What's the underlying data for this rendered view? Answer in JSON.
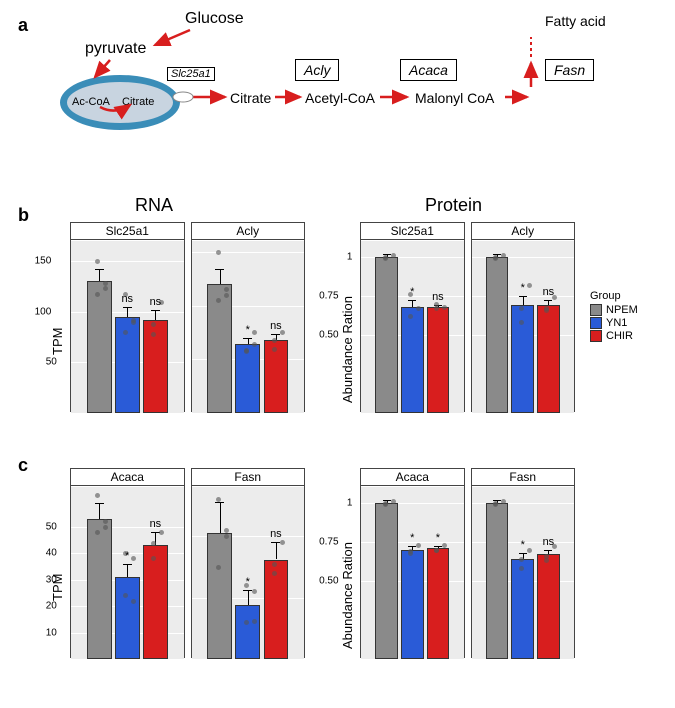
{
  "labels": {
    "a": "a",
    "b": "b",
    "c": "c"
  },
  "diagram": {
    "glucose": "Glucose",
    "pyruvate": "pyruvate",
    "ac_coa": "Ac-CoA",
    "citrate_in": "Citrate",
    "slc25a1": "Slc25a1",
    "citrate_out": "Citrate",
    "acly": "Acly",
    "acetyl_coa": "Acetyl-CoA",
    "acaca": "Acaca",
    "malonyl_coa": "Malonyl CoA",
    "fasn": "Fasn",
    "fatty_acid": "Fatty acid"
  },
  "section_titles": {
    "rna": "RNA",
    "protein": "Protein"
  },
  "colors": {
    "NPEM": "#8a8a8a",
    "YN1": "#2a5bd7",
    "CHIR": "#d81e1e",
    "plot_bg": "#ececec",
    "grid": "#ffffff"
  },
  "legend": {
    "title": "Group",
    "items": [
      "NPEM",
      "YN1",
      "CHIR"
    ]
  },
  "row_b": {
    "rna": {
      "ylabel": "TPM",
      "charts": [
        {
          "title": "Slc25a1",
          "ymax": 170,
          "yticks": [
            50,
            100,
            150
          ],
          "bars": [
            130,
            95,
            92
          ],
          "err": [
            12,
            10,
            10
          ],
          "sig": [
            "",
            "ns",
            "ns"
          ],
          "dots": [
            [
              118,
              128,
              150,
              124
            ],
            [
              80,
              92,
              118,
              90
            ],
            [
              78,
              110,
              88
            ]
          ]
        },
        {
          "title": "Acly",
          "ymax": 320,
          "yticks": [
            100,
            200,
            300
          ],
          "bars": [
            240,
            128,
            135
          ],
          "err": [
            28,
            12,
            12
          ],
          "sig": [
            "",
            "*",
            "ns"
          ],
          "dots": [
            [
              210,
              230,
              300,
              220
            ],
            [
              115,
              150,
              118,
              128
            ],
            [
              120,
              150,
              135
            ]
          ]
        }
      ]
    },
    "protein": {
      "ylabel": "Abundance Ration",
      "charts": [
        {
          "title": "Slc25a1",
          "ymax": 1.1,
          "yticks": [
            0.5,
            0.75,
            1.0
          ],
          "bars": [
            1.0,
            0.68,
            0.68
          ],
          "err": [
            0.02,
            0.04,
            0.01
          ],
          "sig": [
            "",
            "*",
            "ns"
          ],
          "dots": [
            [
              0.99,
              1.01,
              1.0
            ],
            [
              0.62,
              0.67,
              0.76
            ],
            [
              0.67,
              0.68,
              0.7
            ]
          ]
        },
        {
          "title": "Acly",
          "ymax": 1.1,
          "yticks": [
            0.5,
            0.75,
            1.0
          ],
          "bars": [
            1.0,
            0.69,
            0.69
          ],
          "err": [
            0.02,
            0.06,
            0.03
          ],
          "sig": [
            "",
            "*",
            "ns"
          ],
          "dots": [
            [
              0.99,
              1.01,
              1.0
            ],
            [
              0.58,
              0.82,
              0.67
            ],
            [
              0.66,
              0.74,
              0.67
            ]
          ]
        }
      ]
    }
  },
  "row_c": {
    "rna": {
      "ylabel": "TPM",
      "charts": [
        {
          "title": "Acaca",
          "ymax": 65,
          "yticks": [
            10,
            20,
            30,
            40,
            50
          ],
          "bars": [
            53,
            31,
            43
          ],
          "err": [
            6,
            5,
            5
          ],
          "sig": [
            "",
            "*",
            "ns"
          ],
          "dots": [
            [
              48,
              52,
              62,
              50
            ],
            [
              24,
              38,
              40,
              22
            ],
            [
              38,
              48,
              44
            ]
          ]
        },
        {
          "title": "Fasn",
          "ymax": 280,
          "yticks": [
            100,
            200
          ],
          "bars": [
            205,
            88,
            162
          ],
          "err": [
            50,
            25,
            28
          ],
          "sig": [
            "",
            "*",
            "ns"
          ],
          "dots": [
            [
              150,
              210,
              260,
              200
            ],
            [
              60,
              110,
              120,
              62
            ],
            [
              140,
              190,
              155
            ]
          ]
        }
      ]
    },
    "protein": {
      "ylabel": "Abundance Ration",
      "charts": [
        {
          "title": "Acaca",
          "ymax": 1.1,
          "yticks": [
            0.5,
            0.75,
            1.0
          ],
          "bars": [
            1.0,
            0.7,
            0.71
          ],
          "err": [
            0.02,
            0.02,
            0.01
          ],
          "sig": [
            "",
            "*",
            "*"
          ],
          "dots": [
            [
              0.99,
              1.01,
              1.0
            ],
            [
              0.68,
              0.73,
              0.69
            ],
            [
              0.7,
              0.73,
              0.7
            ]
          ]
        },
        {
          "title": "Fasn",
          "ymax": 1.1,
          "yticks": [
            0.5,
            0.75,
            1.0
          ],
          "bars": [
            1.0,
            0.64,
            0.67
          ],
          "err": [
            0.02,
            0.04,
            0.03
          ],
          "sig": [
            "",
            "*",
            "ns"
          ],
          "dots": [
            [
              0.99,
              1.01,
              1.0
            ],
            [
              0.58,
              0.7,
              0.64
            ],
            [
              0.63,
              0.72,
              0.66
            ]
          ]
        }
      ]
    }
  }
}
